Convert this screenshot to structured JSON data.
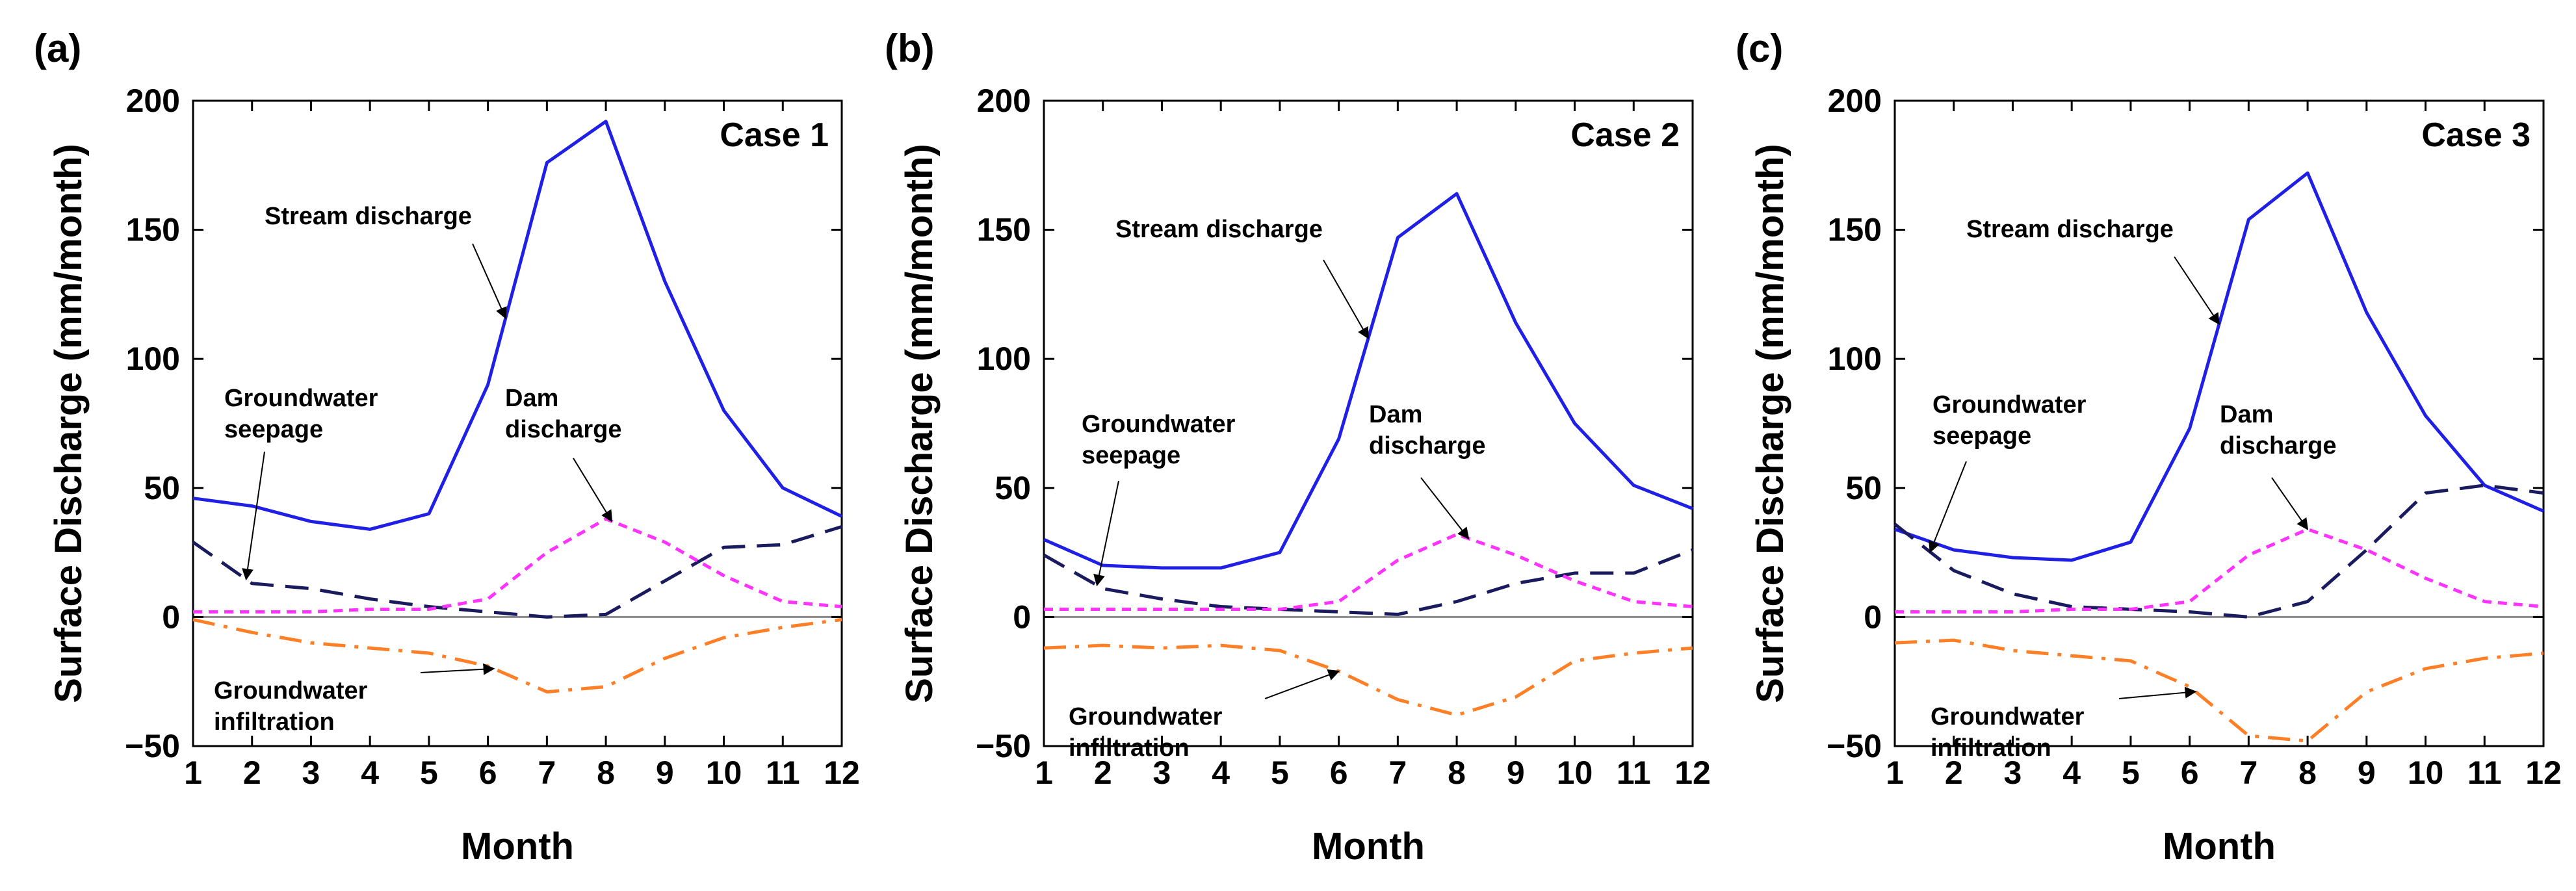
{
  "chart_data": [
    {
      "type": "line",
      "panel": "(a)",
      "title": "Case 1",
      "xlabel": "Month",
      "ylabel": "Surface Discharge (mm/month)",
      "x": [
        1,
        2,
        3,
        4,
        5,
        6,
        7,
        8,
        9,
        10,
        11,
        12
      ],
      "xlim": [
        1,
        12
      ],
      "ylim": [
        -50,
        200
      ],
      "yticks": [
        -50,
        0,
        50,
        100,
        150,
        200
      ],
      "series": [
        {
          "name": "Stream discharge",
          "color": "#1f1fe6",
          "style": "solid",
          "values": [
            46,
            43,
            37,
            34,
            40,
            90,
            176,
            192,
            130,
            80,
            50,
            39
          ]
        },
        {
          "name": "Groundwater seepage",
          "color": "#1a1a5e",
          "style": "dashed",
          "values": [
            29,
            13,
            11,
            7,
            4,
            2,
            0,
            1,
            14,
            27,
            28,
            35
          ]
        },
        {
          "name": "Dam discharge",
          "color": "#ff33ff",
          "style": "dotted",
          "values": [
            2,
            2,
            2,
            3,
            3,
            7,
            25,
            38,
            29,
            16,
            6,
            4
          ]
        },
        {
          "name": "Groundwater infiltration",
          "color": "#ff7f27",
          "style": "dashdot",
          "values": [
            -1,
            -6,
            -10,
            -12,
            -14,
            -19,
            -29,
            -27,
            -16,
            -8,
            -4,
            -1
          ]
        }
      ],
      "annotations": [
        {
          "label": "Stream discharge",
          "target_series": "Stream discharge",
          "target_x": 6.3
        },
        {
          "label": "Groundwater seepage",
          "target_series": "Groundwater seepage",
          "target_x": 1.9
        },
        {
          "label": "Dam discharge",
          "target_series": "Dam discharge",
          "target_x": 8.1
        },
        {
          "label": "Groundwater infiltration",
          "target_series": "Groundwater infiltration",
          "target_x": 6.1
        }
      ]
    },
    {
      "type": "line",
      "panel": "(b)",
      "title": "Case 2",
      "xlabel": "Month",
      "ylabel": "Surface Discharge (mm/month)",
      "x": [
        1,
        2,
        3,
        4,
        5,
        6,
        7,
        8,
        9,
        10,
        11,
        12
      ],
      "xlim": [
        1,
        12
      ],
      "ylim": [
        -50,
        200
      ],
      "yticks": [
        -50,
        0,
        50,
        100,
        150,
        200
      ],
      "series": [
        {
          "name": "Stream discharge",
          "color": "#1f1fe6",
          "style": "solid",
          "values": [
            30,
            20,
            19,
            19,
            25,
            69,
            147,
            164,
            114,
            75,
            51,
            42
          ]
        },
        {
          "name": "Groundwater seepage",
          "color": "#1a1a5e",
          "style": "dashed",
          "values": [
            24,
            11,
            7,
            4,
            3,
            2,
            1,
            6,
            13,
            17,
            17,
            26
          ]
        },
        {
          "name": "Dam discharge",
          "color": "#ff33ff",
          "style": "dotted",
          "values": [
            3,
            3,
            3,
            3,
            3,
            6,
            22,
            32,
            24,
            14,
            6,
            4
          ]
        },
        {
          "name": "Groundwater infiltration",
          "color": "#ff7f27",
          "style": "dashdot",
          "values": [
            -12,
            -11,
            -12,
            -11,
            -13,
            -21,
            -32,
            -38,
            -31,
            -17,
            -14,
            -12
          ]
        }
      ],
      "annotations": [
        {
          "label": "Stream discharge",
          "target_series": "Stream discharge",
          "target_x": 6.5
        },
        {
          "label": "Groundwater seepage",
          "target_series": "Groundwater seepage",
          "target_x": 1.9
        },
        {
          "label": "Dam discharge",
          "target_series": "Dam discharge",
          "target_x": 8.2
        },
        {
          "label": "Groundwater infiltration",
          "target_series": "Groundwater infiltration",
          "target_x": 6.0
        }
      ]
    },
    {
      "type": "line",
      "panel": "(c)",
      "title": "Case 3",
      "xlabel": "Month",
      "ylabel": "Surface Discharge (mm/month)",
      "x": [
        1,
        2,
        3,
        4,
        5,
        6,
        7,
        8,
        9,
        10,
        11,
        12
      ],
      "xlim": [
        1,
        12
      ],
      "ylim": [
        -50,
        200
      ],
      "yticks": [
        -50,
        0,
        50,
        100,
        150,
        200
      ],
      "series": [
        {
          "name": "Stream discharge",
          "color": "#1f1fe6",
          "style": "solid",
          "values": [
            34,
            26,
            23,
            22,
            29,
            73,
            154,
            172,
            118,
            78,
            51,
            41
          ]
        },
        {
          "name": "Groundwater seepage",
          "color": "#1a1a5e",
          "style": "dashed",
          "values": [
            36,
            18,
            9,
            4,
            3,
            2,
            0,
            6,
            26,
            48,
            51,
            48
          ]
        },
        {
          "name": "Dam discharge",
          "color": "#ff33ff",
          "style": "dotted",
          "values": [
            2,
            2,
            2,
            3,
            3,
            6,
            24,
            34,
            26,
            15,
            6,
            4
          ]
        },
        {
          "name": "Groundwater infiltration",
          "color": "#ff7f27",
          "style": "dashdot",
          "values": [
            -10,
            -9,
            -13,
            -15,
            -17,
            -27,
            -46,
            -48,
            -29,
            -20,
            -16,
            -14
          ]
        }
      ],
      "annotations": [
        {
          "label": "Stream discharge",
          "target_series": "Stream discharge",
          "target_x": 6.5
        },
        {
          "label": "Groundwater seepage",
          "target_series": "Groundwater seepage",
          "target_x": 1.6
        },
        {
          "label": "Dam discharge",
          "target_series": "Dam discharge",
          "target_x": 8.0
        },
        {
          "label": "Groundwater infiltration",
          "target_series": "Groundwater infiltration",
          "target_x": 6.1
        }
      ]
    }
  ]
}
